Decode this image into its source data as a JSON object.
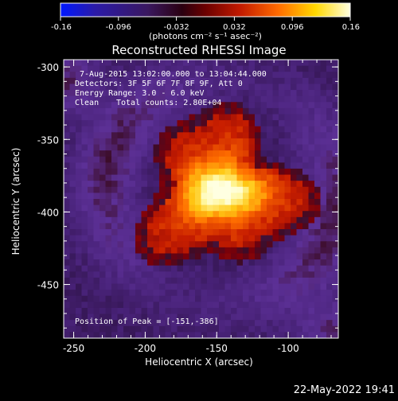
{
  "colorbar": {
    "ticks": [
      "-0.16",
      "-0.096",
      "-0.032",
      "0.032",
      "0.096",
      "0.16"
    ],
    "unit_label": "(photons cm⁻² s⁻¹ asec⁻²)",
    "colors": [
      "#0018ff",
      "#2b1aa8",
      "#3a1860",
      "#2a0010",
      "#6b0000",
      "#c21a00",
      "#ff6a00",
      "#ffd800",
      "#ffffe0"
    ]
  },
  "title": "Reconstructed RHESSI Image",
  "annotations": {
    "time_range": "7-Aug-2015 13:02:00.000 to 13:04:44.000",
    "detectors": "Detectors: 3F 5F 6F 7F 8F 9F, Att 0",
    "energy_range": "Energy Range: 3.0 - 6.0 keV",
    "algorithm": "Clean",
    "total_counts": "Total counts: 2.80E+04",
    "peak_position": "Position of Peak = [-151,-386]"
  },
  "axes": {
    "xlabel": "Heliocentric X (arcsec)",
    "ylabel": "Heliocentric Y (arcsec)",
    "xlim": [
      -257,
      -65
    ],
    "ylim": [
      -487,
      -295
    ],
    "xticks": [
      {
        "value": -250,
        "label": "-250"
      },
      {
        "value": -200,
        "label": "-200"
      },
      {
        "value": -150,
        "label": "-150"
      },
      {
        "value": -100,
        "label": "-100"
      }
    ],
    "yticks": [
      {
        "value": -300,
        "label": "-300"
      },
      {
        "value": -350,
        "label": "-350"
      },
      {
        "value": -400,
        "label": "-400"
      },
      {
        "value": -450,
        "label": "-450"
      }
    ]
  },
  "image": {
    "peak": [
      -151,
      -386
    ]
  },
  "timestamp": "22-May-2022 19:41"
}
